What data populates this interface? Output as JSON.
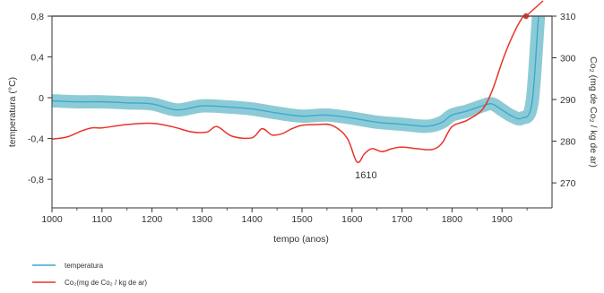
{
  "chart_data": {
    "type": "line",
    "title": "",
    "xlabel": "tempo (anos)",
    "ylabel_left": "temperatura (°C)",
    "ylabel_right": "Co₂ (mg de Co₂ / kg de ar)",
    "x_ticks": [
      "1000",
      "1100",
      "1200",
      "1300",
      "1400",
      "1500",
      "1600",
      "1700",
      "1800",
      "1900"
    ],
    "y_left_ticks": [
      "0,8",
      "0,4",
      "0",
      "-0,4",
      "-0,8"
    ],
    "y_right_ticks": [
      "310",
      "300",
      "290",
      "280",
      "270"
    ],
    "xlim": [
      1000,
      2000
    ],
    "ylim_left": [
      -1.08,
      0.8
    ],
    "ylim_right": [
      264,
      310
    ],
    "grid": false,
    "legend_position": "bottom-left",
    "colors": {
      "temperature": "#3aa8d4",
      "temperature_band": "#8ccbd5",
      "co2": "#e8342a",
      "axis": "#333333",
      "top_line": "#555555"
    },
    "series": [
      {
        "name": "temperatura",
        "axis": "left",
        "band_half_width": 0.065,
        "x": [
          1000,
          1050,
          1100,
          1150,
          1200,
          1250,
          1300,
          1350,
          1400,
          1450,
          1500,
          1550,
          1600,
          1650,
          1700,
          1750,
          1780,
          1800,
          1830,
          1860,
          1880,
          1900,
          1920,
          1940,
          1960,
          1975,
          1985,
          1995
        ],
        "values": [
          -0.03,
          -0.04,
          -0.04,
          -0.05,
          -0.06,
          -0.12,
          -0.08,
          -0.09,
          -0.11,
          -0.15,
          -0.18,
          -0.17,
          -0.2,
          -0.24,
          -0.26,
          -0.28,
          -0.24,
          -0.17,
          -0.13,
          -0.08,
          -0.06,
          -0.12,
          -0.18,
          -0.2,
          -0.05,
          0.9,
          0.9,
          0.9
        ]
      },
      {
        "name": "Co₂(mg de Co₂ / kg de ar)",
        "axis": "right",
        "x": [
          1000,
          1030,
          1060,
          1080,
          1100,
          1150,
          1200,
          1240,
          1280,
          1310,
          1330,
          1360,
          1400,
          1420,
          1440,
          1460,
          1480,
          1500,
          1530,
          1560,
          1590,
          1610,
          1625,
          1640,
          1660,
          1680,
          1700,
          1730,
          1760,
          1780,
          1800,
          1830,
          1860,
          1880,
          1900,
          1920,
          1940,
          1960,
          1975
        ],
        "values": [
          280.5,
          281,
          282.5,
          283.2,
          283.2,
          284,
          284.3,
          283.5,
          282.2,
          282.2,
          283.5,
          281.2,
          280.8,
          283,
          281.5,
          281.8,
          283,
          283.8,
          284,
          283.8,
          280.8,
          275,
          277,
          278.2,
          277.5,
          278.2,
          278.6,
          278.2,
          278,
          279.5,
          283.5,
          285,
          287.5,
          292,
          299,
          305,
          309.5,
          312,
          314
        ]
      }
    ],
    "annotations": [
      {
        "text": "1610",
        "x": 1610,
        "axis": "right",
        "y": 275
      }
    ],
    "markers": [
      {
        "series": "Co₂(mg de Co₂ / kg de ar)",
        "x": 1948,
        "y": 310
      }
    ]
  }
}
